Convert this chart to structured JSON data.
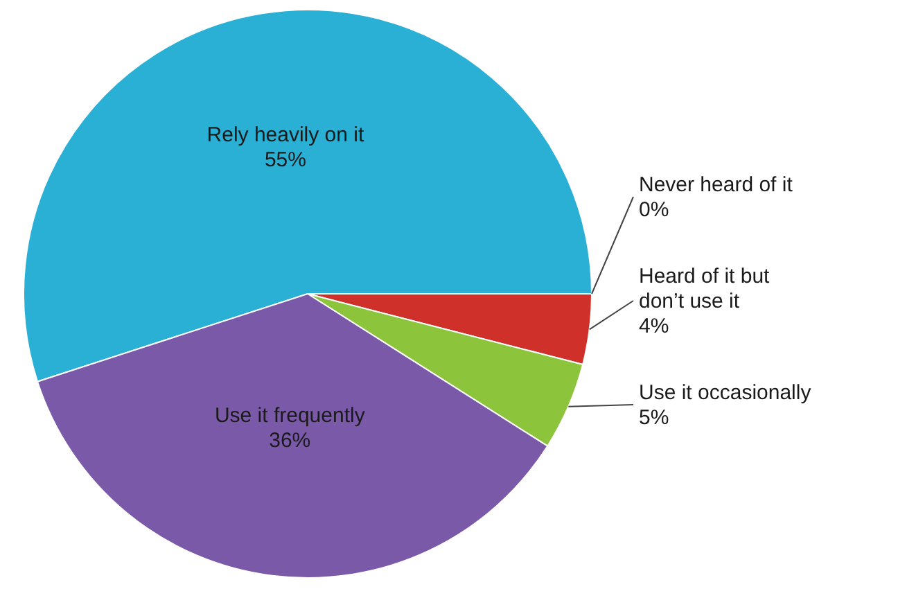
{
  "chart_data": {
    "type": "pie",
    "categories": [
      "Rely heavily on it",
      "Never heard of it",
      "Heard of it but don’t use it",
      "Use it occasionally",
      "Use it frequently"
    ],
    "values": [
      55,
      0,
      4,
      5,
      36
    ],
    "colors": [
      "#2ab0d4",
      "#e8e8e8",
      "#d0302a",
      "#8cc43c",
      "#7a5aa8"
    ],
    "value_labels": [
      "55%",
      "0%",
      "4%",
      "5%",
      "36%"
    ]
  }
}
